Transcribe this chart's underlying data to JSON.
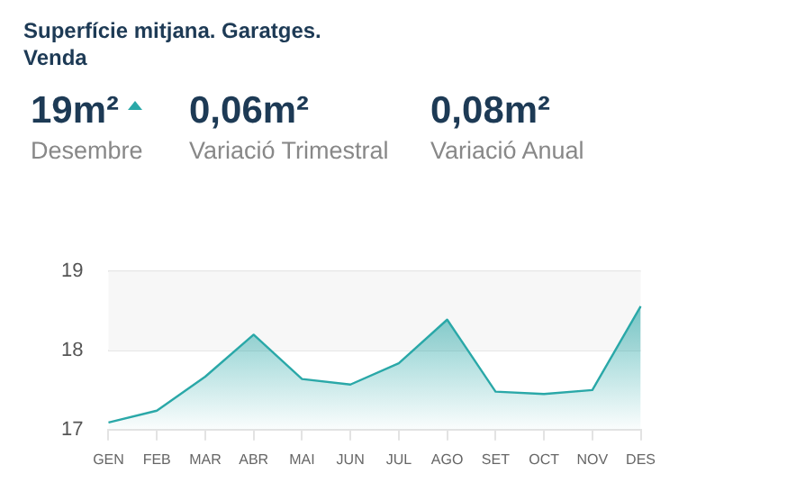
{
  "chart_data": [
    {
      "type": "other",
      "title": "Superfície mitjana. Garatges. Venda",
      "annotations": [
        "19m²",
        "Desembre",
        "0,06m²",
        "Variació Trimestral",
        "0,08m²",
        "Variació Anual"
      ]
    },
    {
      "type": "area",
      "categories": [
        "GEN",
        "FEB",
        "MAR",
        "ABR",
        "MAI",
        "JUN",
        "JUL",
        "AGO",
        "SET",
        "OCT",
        "NOV",
        "DES"
      ],
      "series": [
        {
          "color": "#2aa8a8",
          "values": [
            17.09,
            17.24,
            17.67,
            18.2,
            17.64,
            17.57,
            17.84,
            18.39,
            17.48,
            17.45,
            17.5,
            18.56
          ]
        }
      ],
      "ylim": [
        17,
        19
      ],
      "yticks": [
        17,
        18,
        19
      ],
      "grid": "y",
      "legend": false,
      "bands": [
        {
          "axis": "y",
          "from": 18,
          "to": 19,
          "color": "#f7f7f7"
        }
      ]
    }
  ]
}
